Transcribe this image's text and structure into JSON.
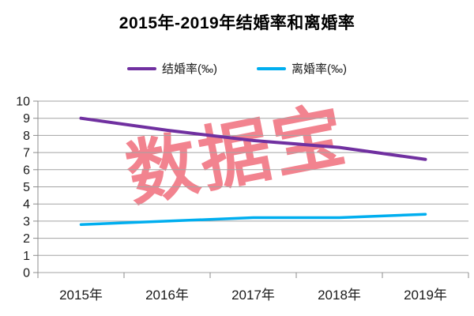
{
  "title": "2015年-2019年结婚率和离婚率",
  "watermark": "数据宝",
  "chart_data": {
    "type": "line",
    "title": "2015年-2019年结婚率和离婚率",
    "categories": [
      "2015年",
      "2016年",
      "2017年",
      "2018年",
      "2019年"
    ],
    "series": [
      {
        "name": "结婚率(‰)",
        "color": "#7030A0",
        "stroke_width": 4,
        "values": [
          9.0,
          8.3,
          7.7,
          7.3,
          6.6
        ]
      },
      {
        "name": "离婚率(‰)",
        "color": "#00AEEF",
        "stroke_width": 3.5,
        "values": [
          2.8,
          3.0,
          3.2,
          3.2,
          3.4
        ]
      }
    ],
    "xlabel": "",
    "ylabel": "",
    "ylim": [
      0,
      10
    ],
    "ytick_step": 1,
    "ytick_labels": [
      "0",
      "1",
      "2",
      "3",
      "4",
      "5",
      "6",
      "7",
      "8",
      "9",
      "10"
    ],
    "grid": true,
    "legend_position": "top"
  },
  "colors": {
    "marriage_line": "#7030A0",
    "divorce_line": "#00AEEF",
    "gridline": "#A3A3A3",
    "axis": "#8C8C8C",
    "watermark": "#F2838F",
    "title_text": "#000000",
    "axis_label_text": "#1A1A1A"
  }
}
